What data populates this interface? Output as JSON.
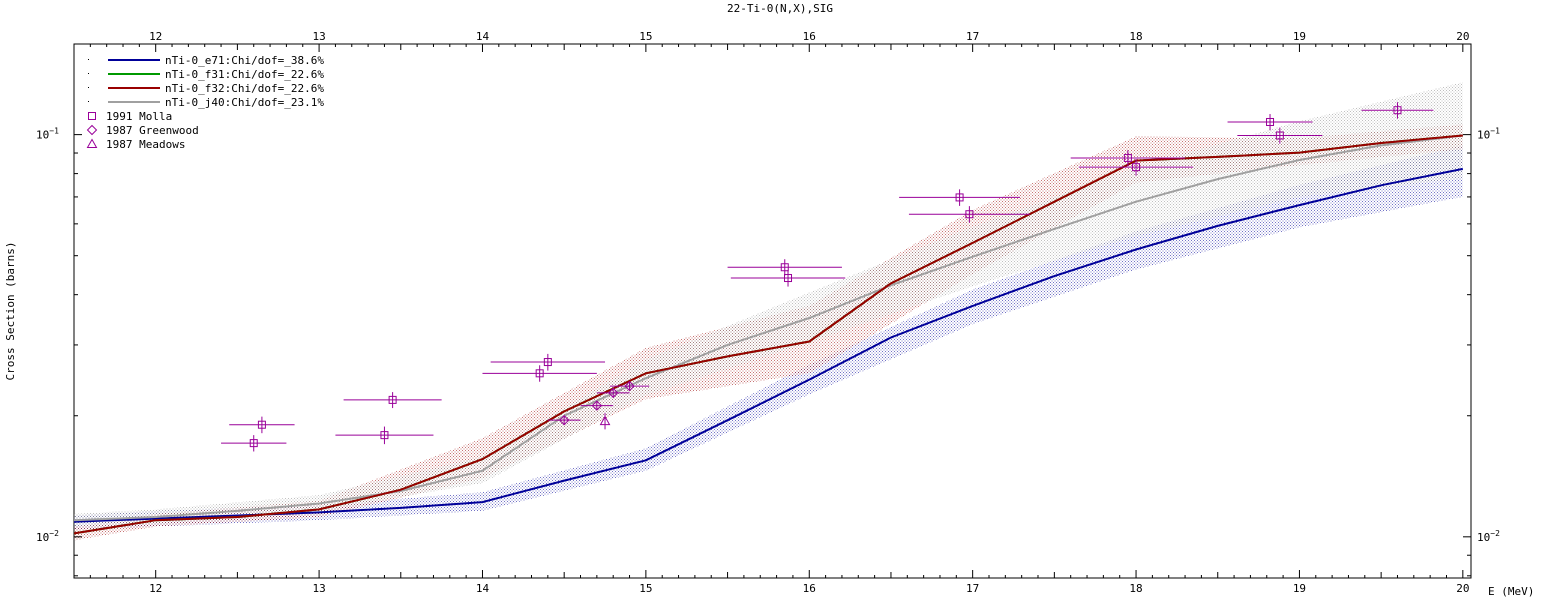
{
  "chart_data": {
    "type": "line",
    "title": "22-Ti-0(N,X),SIG",
    "xlabel": "E (MeV)",
    "ylabel": "Cross Section (barns)",
    "xlim": [
      11.5,
      20.05
    ],
    "ylim": [
      0.0079,
      0.168
    ],
    "yscale": "log",
    "x_ticks": [
      "12",
      "13",
      "14",
      "15",
      "16",
      "17",
      "18",
      "19",
      "20"
    ],
    "y_ticks": [
      {
        "value": 0.1,
        "base": "10",
        "exp": "−1"
      },
      {
        "value": 0.01,
        "base": "10",
        "exp": "−2"
      }
    ],
    "legend_position": "top-left",
    "colors": {
      "e71": "#000099",
      "f31": "#009900",
      "f32": "#990000",
      "j40": "#a0a0a0",
      "exp": "#990099"
    },
    "series": [
      {
        "name": "nTi-0_e71:Chi/dof=_38.6%",
        "key": "e71",
        "x": [
          11.5,
          12.0,
          12.5,
          13.0,
          13.5,
          14.0,
          14.5,
          15.0,
          15.5,
          16.0,
          16.5,
          17.0,
          17.5,
          18.0,
          18.5,
          19.0,
          19.5,
          20.0
        ],
        "y": [
          0.0109,
          0.0111,
          0.0113,
          0.0115,
          0.0118,
          0.0122,
          0.0138,
          0.0155,
          0.0195,
          0.0246,
          0.0313,
          0.0375,
          0.0445,
          0.0518,
          0.0593,
          0.0668,
          0.0748,
          0.0822
        ]
      },
      {
        "name": "nTi-0_f31:Chi/dof=_22.6%",
        "key": "f31",
        "x": [
          11.5,
          12.0,
          12.5,
          13.0,
          13.5,
          14.0,
          14.5,
          15.0,
          15.5,
          16.0,
          16.5,
          17.0,
          17.5,
          18.0,
          18.5,
          19.0,
          19.5,
          20.0
        ],
        "y": [
          0.0102,
          0.011,
          0.0112,
          0.0117,
          0.0131,
          0.0156,
          0.0205,
          0.0255,
          0.0281,
          0.0306,
          0.0427,
          0.0538,
          0.0681,
          0.0862,
          0.088,
          0.0902,
          0.0953,
          0.0995
        ]
      },
      {
        "name": "nTi-0_f32:Chi/dof=_22.6%",
        "key": "f32",
        "x": [
          11.5,
          12.0,
          12.5,
          13.0,
          13.5,
          14.0,
          14.5,
          15.0,
          15.5,
          16.0,
          16.5,
          17.0,
          17.5,
          18.0,
          18.5,
          19.0,
          19.5,
          20.0
        ],
        "y": [
          0.0102,
          0.011,
          0.0112,
          0.0117,
          0.0131,
          0.0156,
          0.0205,
          0.0255,
          0.0281,
          0.0306,
          0.0427,
          0.0538,
          0.0681,
          0.0862,
          0.088,
          0.0902,
          0.0953,
          0.0995
        ]
      },
      {
        "name": "nTi-0_j40:Chi/dof=_23.1%",
        "key": "j40",
        "x": [
          11.5,
          12.0,
          12.5,
          13.0,
          13.5,
          14.0,
          14.5,
          15.0,
          15.5,
          16.0,
          16.5,
          17.0,
          17.5,
          18.0,
          18.5,
          19.0,
          19.5,
          20.0
        ],
        "y": [
          0.011,
          0.0112,
          0.0116,
          0.0121,
          0.013,
          0.0146,
          0.02,
          0.0248,
          0.03,
          0.035,
          0.0422,
          0.0497,
          0.0583,
          0.0681,
          0.0775,
          0.0865,
          0.094,
          0.0995
        ]
      }
    ],
    "bands": [
      {
        "key": "e71",
        "x": [
          11.5,
          12.0,
          13.0,
          14.0,
          15.0,
          16.0,
          17.0,
          18.0,
          19.0,
          20.0
        ],
        "lo": [
          0.0104,
          0.0106,
          0.011,
          0.0116,
          0.0146,
          0.0226,
          0.0338,
          0.0462,
          0.0588,
          0.07
        ],
        "hi": [
          0.0113,
          0.0116,
          0.012,
          0.0129,
          0.0166,
          0.0268,
          0.0412,
          0.0575,
          0.075,
          0.094
        ]
      },
      {
        "key": "f32",
        "x": [
          11.5,
          12.0,
          13.0,
          14.0,
          15.0,
          16.0,
          17.0,
          18.0,
          19.0,
          20.0
        ],
        "lo": [
          0.0098,
          0.0106,
          0.0112,
          0.014,
          0.022,
          0.0255,
          0.045,
          0.076,
          0.084,
          0.092
        ],
        "hi": [
          0.0106,
          0.0114,
          0.0123,
          0.0176,
          0.0295,
          0.0375,
          0.065,
          0.099,
          0.098,
          0.106
        ]
      },
      {
        "key": "j40",
        "x": [
          11.5,
          12.0,
          13.0,
          14.0,
          15.0,
          16.0,
          17.0,
          18.0,
          19.0,
          20.0
        ],
        "lo": [
          0.0106,
          0.0108,
          0.0116,
          0.0136,
          0.0225,
          0.0305,
          0.042,
          0.056,
          0.07,
          0.078
        ],
        "hi": [
          0.0114,
          0.0117,
          0.0127,
          0.0158,
          0.0276,
          0.0405,
          0.059,
          0.083,
          0.108,
          0.135
        ]
      }
    ],
    "experiments": [
      {
        "name": "1991 Molla",
        "marker": "square",
        "points": [
          {
            "x": 12.6,
            "y": 0.0171,
            "xerr": 0.2,
            "yerr": 0.0008
          },
          {
            "x": 12.65,
            "y": 0.019,
            "xerr": 0.2,
            "yerr": 0.0009
          },
          {
            "x": 13.4,
            "y": 0.0179,
            "xerr": 0.3,
            "yerr": 0.0009
          },
          {
            "x": 13.45,
            "y": 0.0219,
            "xerr": 0.3,
            "yerr": 0.001
          },
          {
            "x": 14.35,
            "y": 0.0255,
            "xerr": 0.35,
            "yerr": 0.0012
          },
          {
            "x": 14.4,
            "y": 0.0272,
            "xerr": 0.35,
            "yerr": 0.0013
          },
          {
            "x": 15.85,
            "y": 0.0468,
            "xerr": 0.35,
            "yerr": 0.0022
          },
          {
            "x": 15.87,
            "y": 0.044,
            "xerr": 0.35,
            "yerr": 0.0021
          },
          {
            "x": 16.92,
            "y": 0.0698,
            "xerr": 0.37,
            "yerr": 0.0033
          },
          {
            "x": 16.98,
            "y": 0.0634,
            "xerr": 0.37,
            "yerr": 0.003
          },
          {
            "x": 17.95,
            "y": 0.0875,
            "xerr": 0.35,
            "yerr": 0.004
          },
          {
            "x": 18.0,
            "y": 0.083,
            "xerr": 0.35,
            "yerr": 0.0039
          },
          {
            "x": 18.82,
            "y": 0.1075,
            "xerr": 0.26,
            "yerr": 0.005
          },
          {
            "x": 18.88,
            "y": 0.0995,
            "xerr": 0.26,
            "yerr": 0.0046
          },
          {
            "x": 19.6,
            "y": 0.115,
            "xerr": 0.22,
            "yerr": 0.0054
          }
        ]
      },
      {
        "name": "1987 Greenwood",
        "marker": "diamond",
        "points": [
          {
            "x": 14.5,
            "y": 0.0195,
            "xerr": 0.1,
            "yerr": 0.0005
          },
          {
            "x": 14.7,
            "y": 0.0212,
            "xerr": 0.1,
            "yerr": 0.0005
          },
          {
            "x": 14.8,
            "y": 0.0228,
            "xerr": 0.1,
            "yerr": 0.0005
          },
          {
            "x": 14.9,
            "y": 0.0237,
            "xerr": 0.12,
            "yerr": 0.0005
          }
        ]
      },
      {
        "name": "1987 Meadows",
        "marker": "triangle",
        "points": [
          {
            "x": 14.75,
            "y": 0.0194,
            "xerr": 0.0,
            "yerr": 0.0009
          }
        ]
      }
    ]
  }
}
